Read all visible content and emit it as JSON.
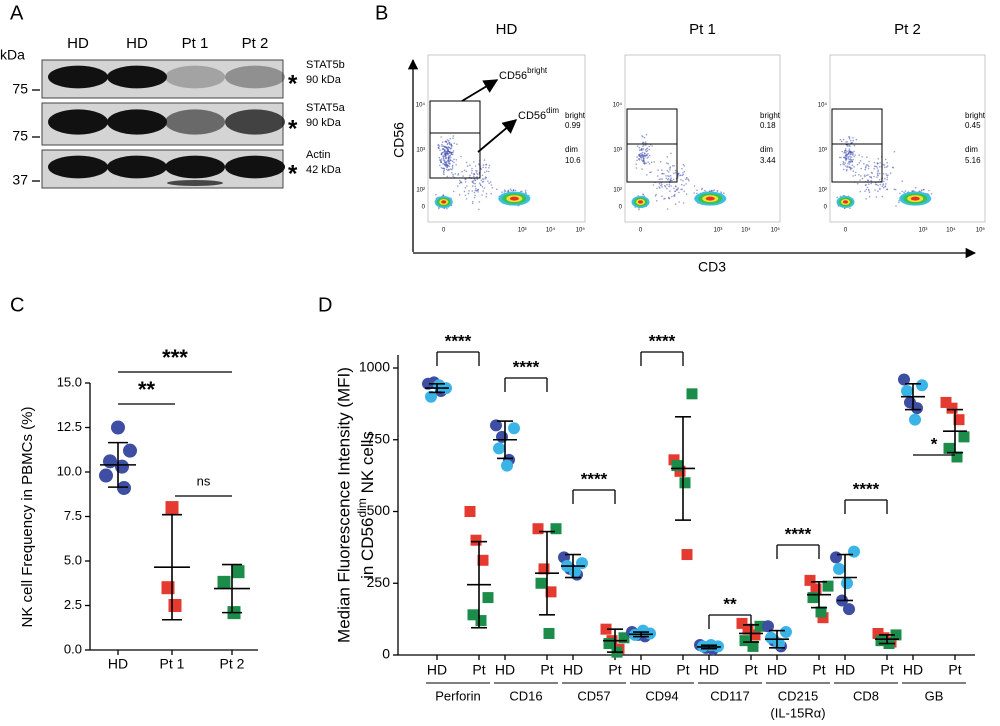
{
  "panel_letters": [
    "A",
    "B",
    "C",
    "D"
  ],
  "blot": {
    "unit": "kDa",
    "lanes": [
      {
        "label": "HD",
        "color": "#000000"
      },
      {
        "label": "HD",
        "color": "#000000"
      },
      {
        "label": "Pt 1",
        "color": "#e0262a"
      },
      {
        "label": "Pt 2",
        "color": "#1e8c45"
      }
    ],
    "rows": [
      {
        "protein": "STAT5b",
        "size": "90 kDa",
        "marker": "75"
      },
      {
        "protein": "STAT5a",
        "size": "90 kDa",
        "marker": "75"
      },
      {
        "protein": "Actin",
        "size": "42 kDa",
        "marker": "37"
      }
    ],
    "asterisk": "*"
  },
  "flow": {
    "x_label": "CD3",
    "y_label": "CD56",
    "gate_marker": "CD56",
    "gate_words": [
      "bright",
      "dim"
    ],
    "yticks": [
      "10⁴",
      "10³",
      "10²",
      "0"
    ],
    "xticks": [
      "0",
      "10³",
      "10⁴",
      "10⁵"
    ],
    "plots": [
      {
        "title": "HD",
        "color": "#000000",
        "bright": "0.99",
        "dim": "10.6"
      },
      {
        "title": "Pt 1",
        "color": "#e0262a",
        "bright": "0.18",
        "dim": "3.44"
      },
      {
        "title": "Pt 2",
        "color": "#1e8c45",
        "bright": "0.45",
        "dim": "5.16"
      }
    ]
  },
  "chart_data": [
    {
      "type": "dot",
      "ylabel": "NK cell Frequency in PBMCs (%)",
      "ylim": [
        0,
        15
      ],
      "yticks": [
        {
          "value": 0,
          "label": "0.0"
        },
        {
          "value": 2.5,
          "label": "2.5"
        },
        {
          "value": 5,
          "label": "5.0"
        },
        {
          "value": 7.5,
          "label": "7.5"
        },
        {
          "value": 10,
          "label": "10.0"
        },
        {
          "value": 12.5,
          "label": "12.5"
        },
        {
          "value": 15,
          "label": "15.0"
        }
      ],
      "groups": [
        {
          "name": "HD",
          "color": "#3d4ea3",
          "values": [
            12.5,
            11.2,
            10.6,
            10.3,
            9.8,
            9.1
          ],
          "mean": 10.4,
          "sd": 1.25
        },
        {
          "name": "Pt 1",
          "color": "#e53a2f",
          "values": [
            8.0,
            3.5,
            2.5
          ],
          "mean": 4.65,
          "sd": 2.95
        },
        {
          "name": "Pt 2",
          "color": "#1b8c4a",
          "values": [
            4.4,
            3.8,
            2.1
          ],
          "mean": 3.45,
          "sd": 1.35
        }
      ],
      "annotations": [
        "***",
        "**",
        "ns"
      ]
    },
    {
      "type": "dot",
      "ylabel": "Median Fluorescence Intensity (MFI)",
      "ylabel2": [
        "in CD56",
        "dim",
        " NK cells"
      ],
      "ylim": [
        0,
        1000
      ],
      "yticks": [
        0,
        250,
        500,
        750,
        1000
      ],
      "sub_labels": [
        "HD",
        "Pt"
      ],
      "hd_colors": [
        "#3d4ea3",
        "#3d4ea3",
        "#3d4ea3",
        "#3ab4e6",
        "#3ab4e6",
        "#3ab4e6"
      ],
      "pt_colors": [
        "#e53a2f",
        "#e53a2f",
        "#e53a2f",
        "#1b8c4a",
        "#1b8c4a",
        "#1b8c4a"
      ],
      "groups": [
        {
          "name": "Perforin",
          "sig": "****",
          "hd": {
            "values": [
              945,
              950,
              920,
              930,
              900,
              940
            ],
            "mean": 930,
            "sd": 15
          },
          "pt": {
            "values": [
              500,
              400,
              330,
              200,
              140,
              120
            ],
            "mean": 245,
            "sd": 150
          }
        },
        {
          "name": "CD16",
          "sig": "****",
          "hd": {
            "values": [
              800,
              760,
              680,
              790,
              720,
              660
            ],
            "mean": 750,
            "sd": 65
          },
          "pt": {
            "values": [
              440,
              300,
              220,
              440,
              250,
              75
            ],
            "mean": 285,
            "sd": 145
          }
        },
        {
          "name": "CD57",
          "sig": "****",
          "hd": {
            "values": [
              340,
              300,
              280,
              320,
              310,
              290
            ],
            "mean": 310,
            "sd": 40
          },
          "pt": {
            "values": [
              90,
              50,
              20,
              60,
              40,
              10
            ],
            "mean": 50,
            "sd": 40
          }
        },
        {
          "name": "CD94",
          "sig": "****",
          "hd": {
            "values": [
              80,
              70,
              65,
              75,
              70,
              85
            ],
            "mean": 72,
            "sd": 8
          },
          "pt": {
            "values": [
              680,
              640,
              350,
              910,
              660,
              600
            ],
            "mean": 650,
            "sd": 180
          }
        },
        {
          "name": "CD117",
          "sig": "**",
          "hd": {
            "values": [
              35,
              25,
              20,
              30,
              30,
              35
            ],
            "mean": 28,
            "sd": 6
          },
          "pt": {
            "values": [
              110,
              90,
              70,
              100,
              50,
              30
            ],
            "mean": 75,
            "sd": 30
          }
        },
        {
          "name": "CD215",
          "name2": "(IL-15Rα)",
          "sig": "****",
          "hd": {
            "values": [
              100,
              50,
              30,
              80,
              60,
              40
            ],
            "mean": 55,
            "sd": 30
          },
          "pt": {
            "values": [
              260,
              230,
              130,
              240,
              200,
              150
            ],
            "mean": 210,
            "sd": 45
          }
        },
        {
          "name": "CD8",
          "sig": "****",
          "hd": {
            "values": [
              340,
              190,
              160,
              360,
              300,
              250
            ],
            "mean": 270,
            "sd": 80
          },
          "pt": {
            "values": [
              75,
              60,
              45,
              70,
              50,
              40
            ],
            "mean": 55,
            "sd": 15
          }
        },
        {
          "name": "GB",
          "sig": "*",
          "hd": {
            "values": [
              960,
              880,
              860,
              940,
              920,
              820
            ],
            "mean": 900,
            "sd": 45
          },
          "pt": {
            "values": [
              880,
              860,
              820,
              760,
              720,
              690
            ],
            "mean": 780,
            "sd": 75
          }
        }
      ]
    }
  ]
}
